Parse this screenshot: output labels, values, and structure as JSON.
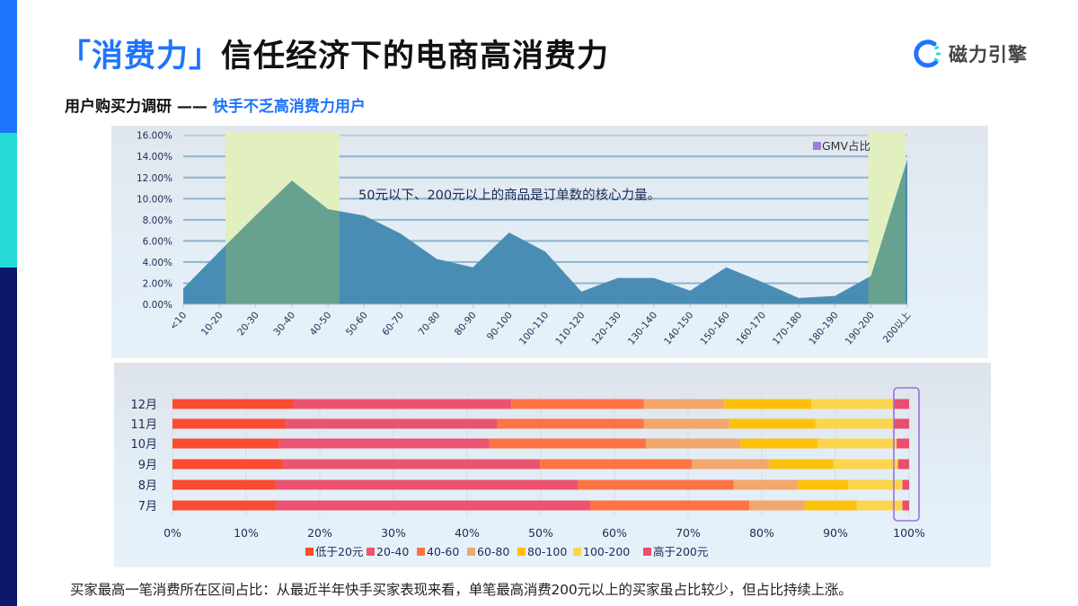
{
  "header": {
    "title_accent": "「消费力」",
    "title_main": "信任经济下的电商高消费力",
    "logo_text": "磁力引擎",
    "subtitle_main": "用户购买力调研 —— ",
    "subtitle_accent": "快手不乏高消费力用户"
  },
  "colors": {
    "brand_blue": "#1e74fd",
    "side_cyan": "#26dcd8",
    "side_navy": "#0e186a",
    "area_fill": "#4a8db4",
    "highlight": "#e2efbf",
    "highlight_overlay_area": "#67a190",
    "box_outline": "#9b6ee0"
  },
  "chart_data": [
    {
      "type": "area",
      "title": "",
      "annotation": "50元以下、200元以上的商品是订单数的核心力量。",
      "legend": [
        "GMV占比"
      ],
      "legend_position": "top-right",
      "xlabel": "",
      "ylabel": "",
      "ylim": [
        0,
        0.16
      ],
      "yticks": [
        "0.00%",
        "2.00%",
        "4.00%",
        "6.00%",
        "8.00%",
        "10.00%",
        "12.00%",
        "14.00%",
        "16.00%"
      ],
      "grid": true,
      "categories": [
        "<10",
        "10-20",
        "20-30",
        "30-40",
        "40-50",
        "50-60",
        "60-70",
        "70-80",
        "80-90",
        "90-100",
        "100-110",
        "110-120",
        "120-130",
        "130-140",
        "140-150",
        "150-160",
        "160-170",
        "170-180",
        "180-190",
        "190-200",
        "200以上"
      ],
      "series": [
        {
          "name": "GMV占比",
          "values": [
            1.5,
            5.0,
            8.4,
            11.7,
            9.0,
            8.4,
            6.7,
            4.3,
            3.5,
            6.8,
            5.0,
            1.2,
            2.5,
            2.5,
            1.3,
            3.5,
            2.1,
            0.6,
            0.8,
            2.7,
            13.7
          ]
        }
      ],
      "highlighted_ranges": [
        [
          "10-20",
          "40-50"
        ],
        [
          "190-200",
          "200以上"
        ]
      ]
    },
    {
      "type": "bar",
      "orientation": "horizontal",
      "stacked": "percent",
      "title": "买家最高一笔消费所在区间占比",
      "xlabel": "",
      "ylabel": "",
      "xlim": [
        0,
        100
      ],
      "xticks": [
        "0%",
        "10%",
        "20%",
        "30%",
        "40%",
        "50%",
        "60%",
        "70%",
        "80%",
        "90%",
        "100%"
      ],
      "categories": [
        "12月",
        "11月",
        "10月",
        "9月",
        "8月",
        "7月"
      ],
      "legend_position": "bottom",
      "series": [
        {
          "name": "低于20元",
          "color": "#fb4b30",
          "values": [
            16.4,
            15.4,
            14.4,
            15.1,
            13.9,
            13.9
          ]
        },
        {
          "name": "20-40",
          "color": "#ec5372",
          "values": [
            29.6,
            28.7,
            28.6,
            34.8,
            41.1,
            42.8
          ]
        },
        {
          "name": "40-60",
          "color": "#fd7344",
          "values": [
            18.0,
            19.9,
            21.3,
            20.6,
            21.2,
            21.6
          ]
        },
        {
          "name": "60-80",
          "color": "#f2a76d",
          "values": [
            10.9,
            11.6,
            12.8,
            10.5,
            8.7,
            7.5
          ]
        },
        {
          "name": "80-100",
          "color": "#fec10b",
          "values": [
            11.8,
            11.7,
            10.5,
            8.7,
            6.8,
            7.1
          ]
        },
        {
          "name": "100-200",
          "color": "#fdd54c",
          "values": [
            11.2,
            10.6,
            10.7,
            8.8,
            7.4,
            6.2
          ]
        },
        {
          "name": "高于200元",
          "color": "#ea4d6e",
          "values": [
            2.1,
            2.1,
            1.7,
            1.5,
            0.9,
            0.9
          ]
        }
      ],
      "highlighted_series": "高于200元"
    }
  ],
  "footnote": "买家最高一笔消费所在区间占比：从最近半年快手买家表现来看，单笔最高消费200元以上的买家虽占比较少，但占比持续上涨。"
}
